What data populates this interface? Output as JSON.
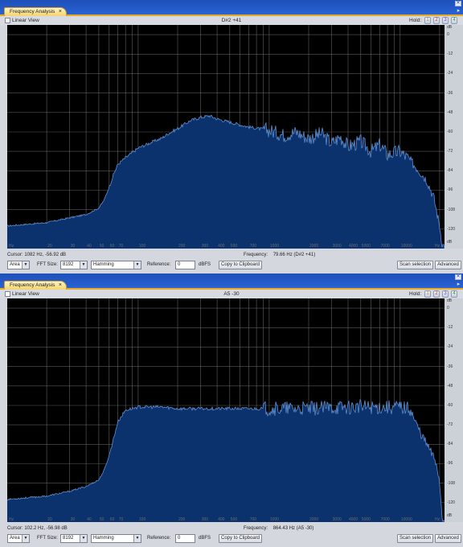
{
  "panels": [
    {
      "tab_label": "Frequency Analysis",
      "tab_close": "×",
      "close_glyph": "✕",
      "linear_view": "Linear View",
      "note": "D#2 +41",
      "hold_label": "Hold:",
      "hold_buttons": [
        "1",
        "2",
        "3",
        "4"
      ],
      "cursor_label": "Cursor:",
      "cursor_value": "1082 Hz, -56.92 dB",
      "frequency_label": "Frequency:",
      "frequency_value": "79.66 Hz (D#2 +41)",
      "area_value": "Area",
      "fft_label": "FFT Size:",
      "fft_value": "8192",
      "window_value": "Hamming",
      "reference_label": "Reference:",
      "reference_value": "0",
      "dbfs_label": "dBFS",
      "copy_button": "Copy to Clipboard",
      "scan_button": "Scan selection",
      "advanced_button": "Advanced"
    },
    {
      "tab_label": "Frequency Analysis",
      "tab_close": "×",
      "close_glyph": "✕",
      "linear_view": "Linear View",
      "note": "A5 -30",
      "hold_label": "Hold:",
      "hold_buttons": [
        "1",
        "2",
        "3",
        "4"
      ],
      "cursor_label": "Cursor:",
      "cursor_value": "102.2 Hz, -56.98 dB",
      "frequency_label": "Frequency:",
      "frequency_value": "864.43 Hz (A5 -30)",
      "area_value": "Area",
      "fft_label": "FFT Size:",
      "fft_value": "8192",
      "window_value": "Hamming",
      "reference_label": "Reference:",
      "reference_value": "0",
      "dbfs_label": "dBFS",
      "copy_button": "Copy to Clipboard",
      "scan_button": "Scan selection",
      "advanced_button": "Advanced"
    }
  ],
  "colors": {
    "plot_background": "#000000",
    "spectrum_fill": "#0b326c",
    "spectrum_line": "#5f8fd2",
    "grid": "#7f7f7f",
    "axis_label": "#6c6c6c"
  },
  "chart_data": [
    {
      "type": "area",
      "x_scale": "log",
      "x_axis_unit": "Hz",
      "y_axis_unit": "dB",
      "x_tick_labels": [
        "20",
        "30",
        "40",
        "50",
        "60",
        "70",
        "100",
        "200",
        "300",
        "400",
        "500",
        "700",
        "1000",
        "2000",
        "3000",
        "4000",
        "5000",
        "7000",
        "10000"
      ],
      "y_tick_labels": [
        "0",
        "-12",
        "-24",
        "-36",
        "-48",
        "-60",
        "-72",
        "-84",
        "-96",
        "-108",
        "-120"
      ],
      "ylim": [
        -132,
        6
      ],
      "spectrum": [
        [
          10,
          -118
        ],
        [
          20,
          -116
        ],
        [
          30,
          -113
        ],
        [
          40,
          -111
        ],
        [
          50,
          -107
        ],
        [
          55,
          -102
        ],
        [
          60,
          -94
        ],
        [
          65,
          -86
        ],
        [
          70,
          -80
        ],
        [
          80,
          -76
        ],
        [
          100,
          -70
        ],
        [
          130,
          -66
        ],
        [
          150,
          -64
        ],
        [
          170,
          -61
        ],
        [
          200,
          -58
        ],
        [
          250,
          -53
        ],
        [
          300,
          -51
        ],
        [
          350,
          -50
        ],
        [
          400,
          -52
        ],
        [
          500,
          -54
        ],
        [
          700,
          -57
        ],
        [
          1000,
          -59
        ],
        [
          1300,
          -62
        ],
        [
          1600,
          -60
        ],
        [
          2000,
          -64
        ],
        [
          2500,
          -61
        ],
        [
          3000,
          -67
        ],
        [
          3500,
          -63
        ],
        [
          4000,
          -69
        ],
        [
          5000,
          -66
        ],
        [
          6000,
          -72
        ],
        [
          7000,
          -68
        ],
        [
          8000,
          -74
        ],
        [
          10000,
          -72
        ],
        [
          12000,
          -78
        ],
        [
          14000,
          -84
        ],
        [
          16000,
          -90
        ],
        [
          18000,
          -100
        ],
        [
          20000,
          -118
        ],
        [
          21000,
          -130
        ]
      ]
    },
    {
      "type": "area",
      "x_scale": "log",
      "x_axis_unit": "Hz",
      "y_axis_unit": "dB",
      "x_tick_labels": [
        "20",
        "30",
        "40",
        "50",
        "60",
        "70",
        "100",
        "200",
        "300",
        "400",
        "500",
        "700",
        "1000",
        "2000",
        "3000",
        "4000",
        "5000",
        "7000",
        "10000"
      ],
      "y_tick_labels": [
        "0",
        "-12",
        "-24",
        "-36",
        "-48",
        "-60",
        "-72",
        "-84",
        "-96",
        "-108",
        "-120"
      ],
      "ylim": [
        -132,
        6
      ],
      "spectrum": [
        [
          10,
          -118
        ],
        [
          20,
          -116
        ],
        [
          30,
          -113
        ],
        [
          40,
          -110
        ],
        [
          50,
          -106
        ],
        [
          55,
          -100
        ],
        [
          60,
          -91
        ],
        [
          65,
          -80
        ],
        [
          70,
          -70
        ],
        [
          80,
          -63
        ],
        [
          100,
          -61
        ],
        [
          150,
          -61
        ],
        [
          200,
          -62
        ],
        [
          300,
          -62
        ],
        [
          500,
          -62
        ],
        [
          1000,
          -62
        ],
        [
          2000,
          -62
        ],
        [
          4000,
          -61
        ],
        [
          7000,
          -61
        ],
        [
          10000,
          -61
        ],
        [
          12000,
          -62
        ],
        [
          13000,
          -70
        ],
        [
          15000,
          -80
        ],
        [
          17000,
          -88
        ],
        [
          19000,
          -96
        ],
        [
          20000,
          -108
        ],
        [
          21000,
          -130
        ]
      ]
    }
  ]
}
